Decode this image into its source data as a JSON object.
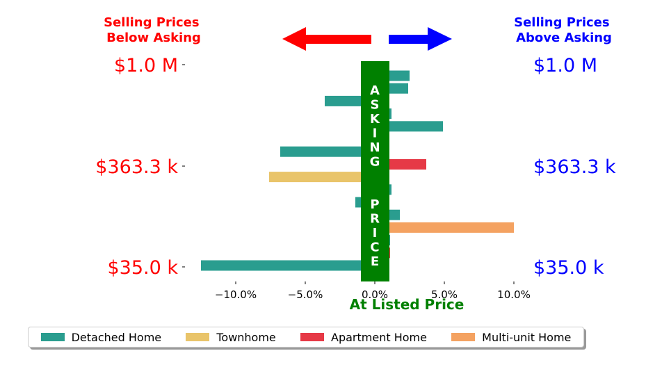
{
  "chart_data": {
    "type": "bar",
    "orientation": "horizontal",
    "header_left": [
      "Selling Prices",
      "Below Asking"
    ],
    "header_right": [
      "Selling Prices",
      "Above Asking"
    ],
    "center_band_label": "ASKING  PRICE",
    "xlabel": "At Listed Price",
    "x_tick_labels": [
      "−10.0%",
      "−5.0%",
      "0.0%",
      "5.0%",
      "10.0%"
    ],
    "x_ticks": [
      -10,
      -5,
      0,
      5,
      10
    ],
    "xlim": [
      -13,
      11
    ],
    "y_tick_labels_left": [
      "$1.0 M",
      "$363.3 k",
      "$35.0 k"
    ],
    "y_tick_labels_right": [
      "$1.0 M",
      "$363.3 k",
      "$35.0 k"
    ],
    "legend_position": "bottom",
    "series": [
      {
        "name": "Detached Home",
        "color": "#2a9d8f"
      },
      {
        "name": "Townhome",
        "color": "#e9c46a"
      },
      {
        "name": "Apartment Home",
        "color": "#e63946"
      },
      {
        "name": "Multi-unit Home",
        "color": "#f4a261"
      }
    ],
    "bars": [
      {
        "series": "Detached Home",
        "value": 2.5
      },
      {
        "series": "Detached Home",
        "value": 2.4
      },
      {
        "series": "Detached Home",
        "value": -3.6
      },
      {
        "series": "Detached Home",
        "value": 1.2
      },
      {
        "series": "Detached Home",
        "value": 4.9
      },
      {
        "series": "Detached Home",
        "value": 0.6
      },
      {
        "series": "Detached Home",
        "value": -6.8
      },
      {
        "series": "Apartment Home",
        "value": 3.7
      },
      {
        "series": "Townhome",
        "value": -7.6
      },
      {
        "series": "Detached Home",
        "value": 1.2
      },
      {
        "series": "Detached Home",
        "value": -1.4
      },
      {
        "series": "Detached Home",
        "value": 1.8
      },
      {
        "series": "Multi-unit Home",
        "value": 10.0
      },
      {
        "series": "Detached Home",
        "value": 1.1
      },
      {
        "series": "Apartment Home",
        "value": 1.1
      },
      {
        "series": "Detached Home",
        "value": -12.5
      }
    ]
  }
}
